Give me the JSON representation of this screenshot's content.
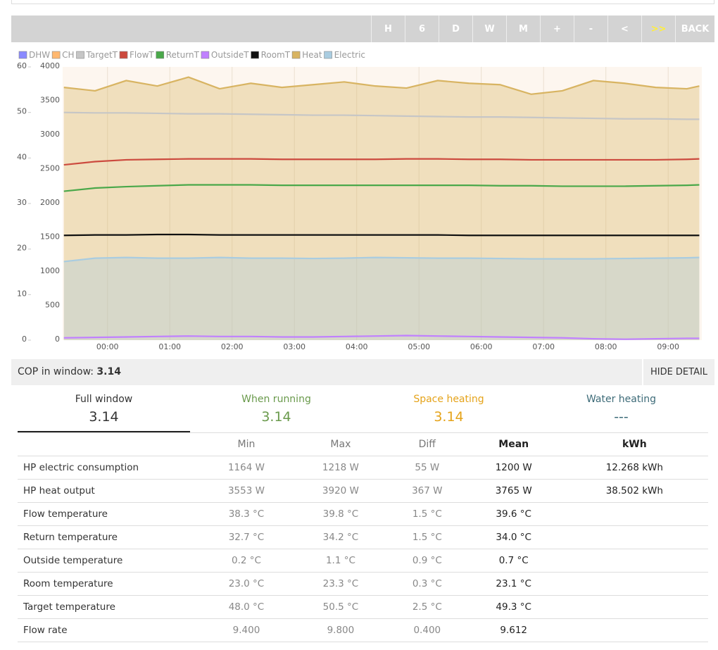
{
  "toolbar": {
    "buttons": [
      "H",
      "6",
      "D",
      "W",
      "M",
      "+",
      "-",
      "<",
      ">>",
      "BACK"
    ]
  },
  "chart_data": {
    "type": "line",
    "x": [
      -0.7,
      -0.2,
      0.3,
      0.8,
      1.3,
      1.8,
      2.3,
      2.8,
      3.3,
      3.8,
      4.3,
      4.8,
      5.3,
      5.8,
      6.3,
      6.8,
      7.3,
      7.8,
      8.3,
      8.8,
      9.3,
      9.5
    ],
    "xlim": [
      -0.72,
      9.54
    ],
    "xticks": [
      {
        "value": 0,
        "label": "00:00"
      },
      {
        "value": 1,
        "label": "01:00"
      },
      {
        "value": 2,
        "label": "02:00"
      },
      {
        "value": 3,
        "label": "03:00"
      },
      {
        "value": 4,
        "label": "04:00"
      },
      {
        "value": 5,
        "label": "05:00"
      },
      {
        "value": 6,
        "label": "06:00"
      },
      {
        "value": 7,
        "label": "07:00"
      },
      {
        "value": 8,
        "label": "08:00"
      },
      {
        "value": 9,
        "label": "09:00"
      }
    ],
    "ylim": [
      0,
      60
    ],
    "yticks": [
      0,
      10,
      20,
      30,
      40,
      50,
      60
    ],
    "y2lim": [
      0,
      4000
    ],
    "y2ticks": [
      0,
      500,
      1000,
      1500,
      2000,
      2500,
      3000,
      3500,
      4000
    ],
    "grid": true,
    "series": [
      {
        "name": "DHW",
        "color": "#8a8aff",
        "values": [
          null,
          null,
          null,
          null,
          null,
          null,
          null,
          null,
          null,
          null,
          null,
          null,
          null,
          null,
          null,
          null,
          null,
          null,
          null,
          null,
          null,
          null
        ]
      },
      {
        "name": "CH",
        "color": "#ffb870",
        "values": [
          null,
          null,
          null,
          null,
          null,
          null,
          null,
          null,
          null,
          null,
          null,
          null,
          null,
          null,
          null,
          null,
          null,
          null,
          null,
          null,
          null,
          null
        ]
      },
      {
        "name": "TargetT",
        "color": "#c6c6c6",
        "values": [
          50.0,
          49.9,
          49.9,
          49.8,
          49.7,
          49.7,
          49.6,
          49.5,
          49.4,
          49.4,
          49.3,
          49.2,
          49.1,
          49.0,
          49.0,
          48.9,
          48.8,
          48.7,
          48.6,
          48.6,
          48.5,
          48.5
        ]
      },
      {
        "name": "FlowT",
        "color": "#cc4a3e",
        "values": [
          38.5,
          39.2,
          39.6,
          39.7,
          39.8,
          39.8,
          39.8,
          39.7,
          39.7,
          39.7,
          39.7,
          39.8,
          39.8,
          39.7,
          39.7,
          39.6,
          39.6,
          39.6,
          39.6,
          39.6,
          39.7,
          39.8
        ]
      },
      {
        "name": "ReturnT",
        "color": "#4aa84a",
        "values": [
          32.7,
          33.4,
          33.7,
          33.9,
          34.1,
          34.1,
          34.1,
          34.0,
          34.0,
          34.0,
          34.0,
          34.0,
          34.0,
          34.0,
          33.9,
          33.9,
          33.8,
          33.8,
          33.8,
          33.9,
          34.0,
          34.1
        ]
      },
      {
        "name": "OutsideT",
        "color": "#c080ff",
        "values": [
          0.5,
          0.6,
          0.7,
          0.8,
          0.9,
          0.8,
          0.8,
          0.7,
          0.7,
          0.8,
          0.9,
          1.0,
          0.9,
          0.8,
          0.7,
          0.6,
          0.5,
          0.3,
          0.2,
          0.3,
          0.4,
          0.4
        ]
      },
      {
        "name": "RoomT",
        "color": "#111111",
        "values": [
          23.0,
          23.1,
          23.1,
          23.2,
          23.2,
          23.1,
          23.1,
          23.1,
          23.1,
          23.1,
          23.1,
          23.1,
          23.1,
          23.0,
          23.0,
          23.0,
          23.0,
          23.0,
          23.0,
          23.0,
          23.0,
          23.0
        ]
      },
      {
        "name": "Heat",
        "color": "#d8b462",
        "axis": "y2",
        "fill": true,
        "values": [
          3700,
          3650,
          3800,
          3720,
          3850,
          3680,
          3760,
          3700,
          3740,
          3780,
          3720,
          3690,
          3800,
          3760,
          3740,
          3600,
          3650,
          3800,
          3760,
          3700,
          3680,
          3720
        ]
      },
      {
        "name": "Electric",
        "color": "#a9cce0",
        "axis": "y2",
        "fill": true,
        "values": [
          1150,
          1200,
          1210,
          1200,
          1200,
          1210,
          1200,
          1200,
          1195,
          1200,
          1210,
          1205,
          1200,
          1200,
          1195,
          1190,
          1190,
          1190,
          1195,
          1200,
          1205,
          1210
        ]
      }
    ]
  },
  "summary": {
    "label": "COP in window:",
    "value": "3.14",
    "button": "HIDE DETAIL"
  },
  "tabs": [
    {
      "label": "Full window",
      "value": "3.14"
    },
    {
      "label": "When running",
      "value": "3.14"
    },
    {
      "label": "Space heating",
      "value": "3.14"
    },
    {
      "label": "Water heating",
      "value": "---"
    }
  ],
  "table": {
    "columns": [
      "Min",
      "Max",
      "Diff",
      "Mean",
      "kWh"
    ],
    "rows": [
      [
        "HP electric consumption",
        "1164 W",
        "1218 W",
        "55 W",
        "1200 W",
        "12.268 kWh"
      ],
      [
        "HP heat output",
        "3553 W",
        "3920 W",
        "367 W",
        "3765 W",
        "38.502 kWh"
      ],
      [
        "Flow temperature",
        "38.3 °C",
        "39.8 °C",
        "1.5 °C",
        "39.6 °C"
      ],
      [
        "Return temperature",
        "32.7 °C",
        "34.2 °C",
        "1.5 °C",
        "34.0 °C"
      ],
      [
        "Outside temperature",
        "0.2 °C",
        "1.1 °C",
        "0.9 °C",
        "0.7 °C"
      ],
      [
        "Room temperature",
        "23.0 °C",
        "23.3 °C",
        "0.3 °C",
        "23.1 °C"
      ],
      [
        "Target temperature",
        "48.0 °C",
        "50.5 °C",
        "2.5 °C",
        "49.3 °C"
      ],
      [
        "Flow rate",
        "9.400",
        "9.800",
        "0.400",
        "9.612"
      ]
    ]
  }
}
